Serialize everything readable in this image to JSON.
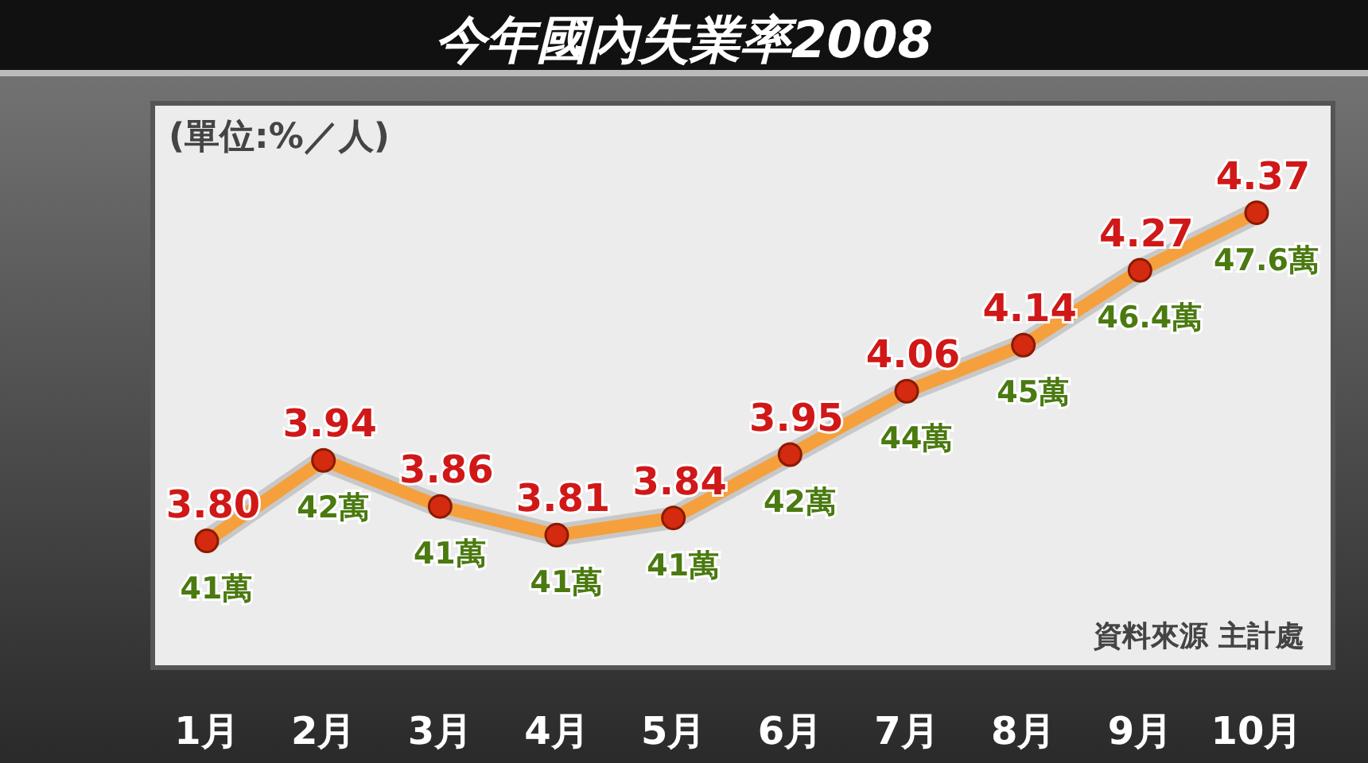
{
  "chart_data": {
    "type": "line",
    "title": "今年國內失業率2008",
    "ylabel": "(單位:%／人)",
    "categories": [
      "1月",
      "2月",
      "3月",
      "4月",
      "5月",
      "6月",
      "7月",
      "8月",
      "9月",
      "10月"
    ],
    "series": [
      {
        "color": "#f5a03c",
        "values": [
          3.8,
          3.94,
          3.86,
          3.81,
          3.84,
          3.95,
          4.06,
          4.14,
          4.27,
          4.37
        ],
        "value_labels": [
          "3.80",
          "3.94",
          "3.86",
          "3.81",
          "3.84",
          "3.95",
          "4.06",
          "4.14",
          "4.27",
          "4.37"
        ]
      }
    ],
    "annotations": [
      {
        "text": "41萬",
        "x": "1月",
        "y": 3.8
      },
      {
        "text": "42萬",
        "x": "2月",
        "y": 3.94
      },
      {
        "text": "41萬",
        "x": "3月",
        "y": 3.86
      },
      {
        "text": "41萬",
        "x": "4月",
        "y": 3.81
      },
      {
        "text": "41萬",
        "x": "5月",
        "y": 3.84
      },
      {
        "text": "42萬",
        "x": "6月",
        "y": 3.95
      },
      {
        "text": "44萬",
        "x": "7月",
        "y": 4.06
      },
      {
        "text": "45萬",
        "x": "8月",
        "y": 4.14
      },
      {
        "text": "46.4萬",
        "x": "9月",
        "y": 4.27
      },
      {
        "text": "47.6萬",
        "x": "10月",
        "y": 4.37
      },
      "資料來源 主計處"
    ],
    "ylim": [
      3.58,
      4.56
    ],
    "marker": "circle",
    "tick_labels": "x"
  }
}
